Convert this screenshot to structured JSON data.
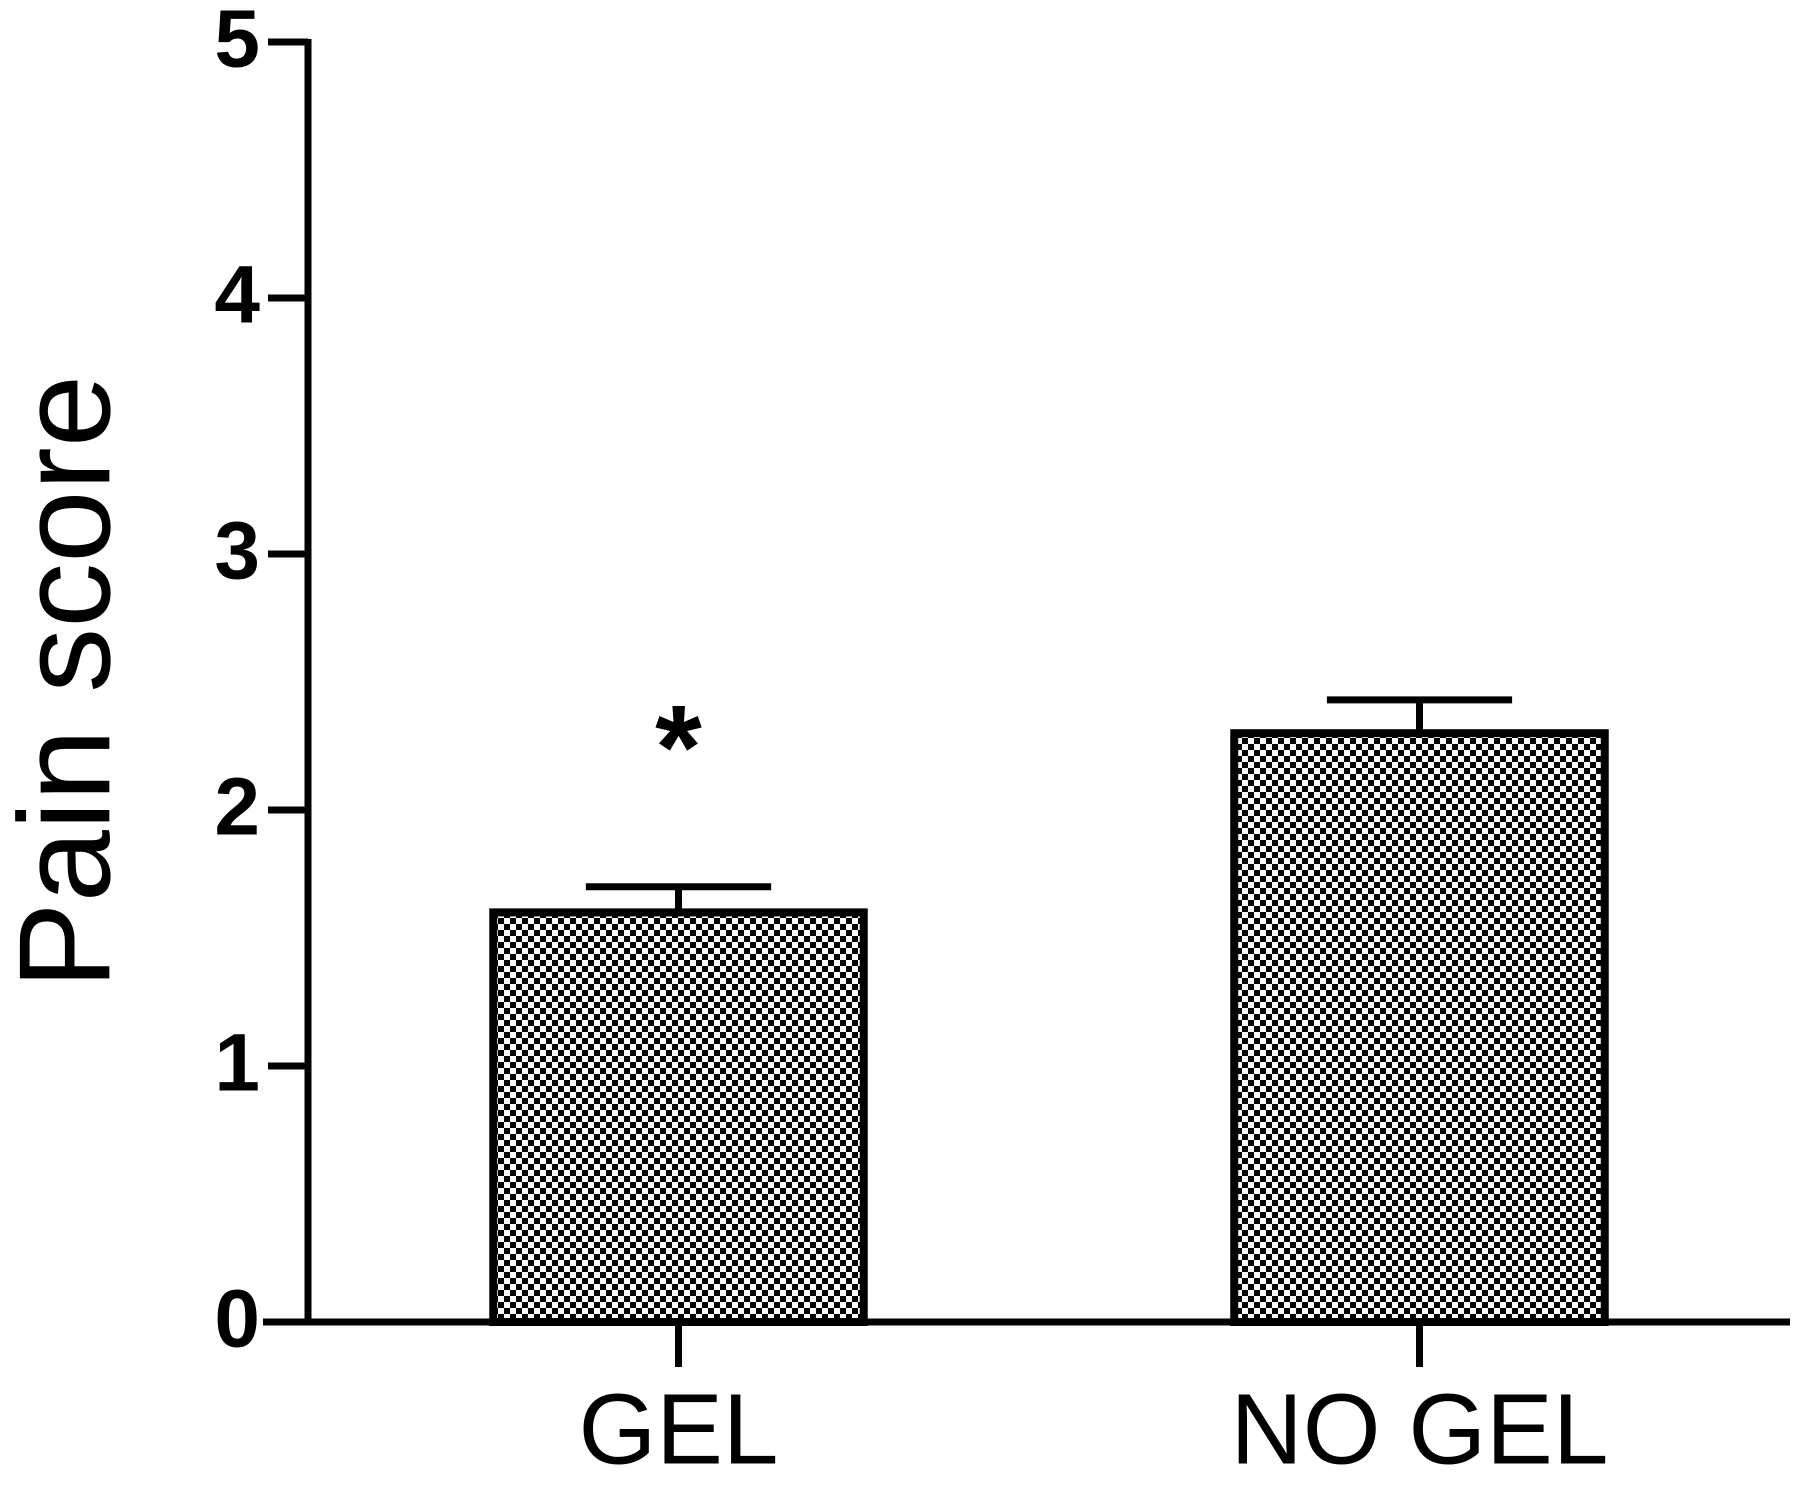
{
  "chart_data": {
    "type": "bar",
    "ylabel": "Pain score",
    "categories": [
      "GEL",
      "NO GEL"
    ],
    "values": [
      1.6,
      2.3
    ],
    "errors": [
      0.1,
      0.13
    ],
    "annotation": "*",
    "color": "#000000",
    "ylim": [
      0,
      5
    ],
    "yticks": [
      0,
      1,
      2,
      3,
      4,
      5
    ],
    "grid": false
  }
}
